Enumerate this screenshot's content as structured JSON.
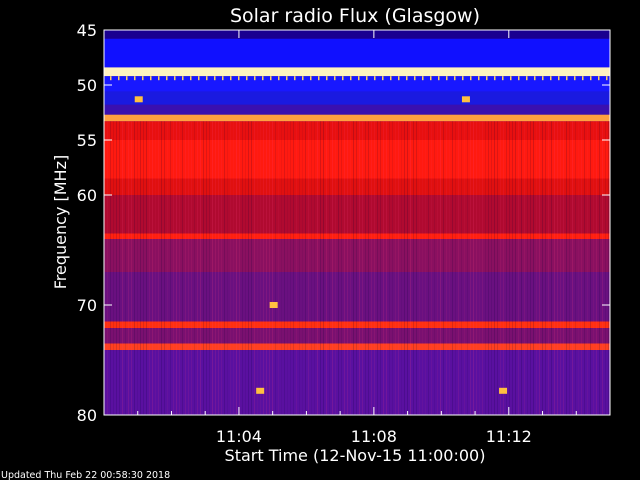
{
  "chart_data": {
    "type": "heatmap",
    "title": "Solar radio Flux (Glasgow)",
    "ylabel": "Frequency [MHz]",
    "xlabel": "Start Time (12-Nov-15 11:00:00)",
    "footer": "Updated Thu Feb 22 00:58:30 2018",
    "x_minutes_range": [
      0,
      15
    ],
    "ylim": [
      45,
      80
    ],
    "y_ticks": [
      {
        "value": 45,
        "label": "45"
      },
      {
        "value": 50,
        "label": "50"
      },
      {
        "value": 55,
        "label": "55"
      },
      {
        "value": 60,
        "label": "60"
      },
      {
        "value": 70,
        "label": "70"
      },
      {
        "value": 80,
        "label": "80"
      }
    ],
    "x_ticks": [
      {
        "minute": 4,
        "label": "11:04"
      },
      {
        "minute": 8,
        "label": "11:08"
      },
      {
        "minute": 12,
        "label": "11:12"
      }
    ],
    "colormap": "blue-red-yellow-white",
    "bands": [
      {
        "from": 45.0,
        "to": 45.8,
        "color": "#1a0090"
      },
      {
        "from": 45.8,
        "to": 48.4,
        "color": "#1010ff"
      },
      {
        "from": 48.4,
        "to": 49.2,
        "color": "#fff3c0"
      },
      {
        "from": 49.2,
        "to": 50.6,
        "color": "#1818ff"
      },
      {
        "from": 50.6,
        "to": 51.8,
        "color": "#1a1ae0"
      },
      {
        "from": 51.8,
        "to": 52.7,
        "color": "#3a10b0"
      },
      {
        "from": 52.7,
        "to": 53.3,
        "color": "#ffa040"
      },
      {
        "from": 53.3,
        "to": 55.0,
        "color": "#e81010"
      },
      {
        "from": 55.0,
        "to": 58.5,
        "color": "#ff1a10"
      },
      {
        "from": 58.5,
        "to": 60.0,
        "color": "#e01010"
      },
      {
        "from": 60.0,
        "to": 63.5,
        "color": "#b00a30"
      },
      {
        "from": 63.5,
        "to": 64.0,
        "color": "#ff2010"
      },
      {
        "from": 64.0,
        "to": 67.0,
        "color": "#8a1060"
      },
      {
        "from": 67.0,
        "to": 71.5,
        "color": "#6a1080"
      },
      {
        "from": 71.5,
        "to": 72.1,
        "color": "#ff3010"
      },
      {
        "from": 72.1,
        "to": 73.5,
        "color": "#7a1070"
      },
      {
        "from": 73.5,
        "to": 74.1,
        "color": "#ff4020"
      },
      {
        "from": 74.1,
        "to": 80.0,
        "color": "#5a10a0"
      }
    ],
    "bursts": [
      {
        "minute": 4.6,
        "freq": 77.8
      },
      {
        "minute": 11.8,
        "freq": 77.8
      },
      {
        "minute": 5.0,
        "freq": 70.0
      },
      {
        "minute": 1.0,
        "freq": 51.3
      },
      {
        "minute": 10.7,
        "freq": 51.3
      }
    ]
  }
}
